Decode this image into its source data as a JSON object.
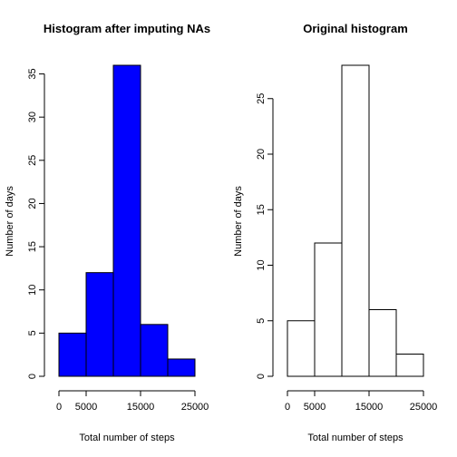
{
  "chart_data": [
    {
      "type": "bar",
      "title": "Histogram after imputing NAs",
      "xlabel": "Total number of steps",
      "ylabel": "Number of days",
      "bin_edges": [
        0,
        5000,
        10000,
        15000,
        20000,
        25000
      ],
      "values": [
        5,
        12,
        36,
        6,
        2
      ],
      "bar_color": "#0000ff",
      "xlim": [
        0,
        25000
      ],
      "x_ticks": [
        0,
        5000,
        15000,
        25000
      ],
      "y_ticks": [
        0,
        5,
        10,
        15,
        20,
        25,
        30,
        35
      ],
      "ylim": [
        0,
        36
      ]
    },
    {
      "type": "bar",
      "title": "Original histogram",
      "xlabel": "Total number of steps",
      "ylabel": "Number of days",
      "bin_edges": [
        0,
        5000,
        10000,
        15000,
        20000,
        25000
      ],
      "values": [
        5,
        12,
        28,
        6,
        2
      ],
      "bar_color": "#ffffff",
      "xlim": [
        0,
        25000
      ],
      "x_ticks": [
        0,
        5000,
        15000,
        25000
      ],
      "y_ticks": [
        0,
        5,
        10,
        15,
        20,
        25
      ],
      "ylim": [
        0,
        28
      ]
    }
  ]
}
